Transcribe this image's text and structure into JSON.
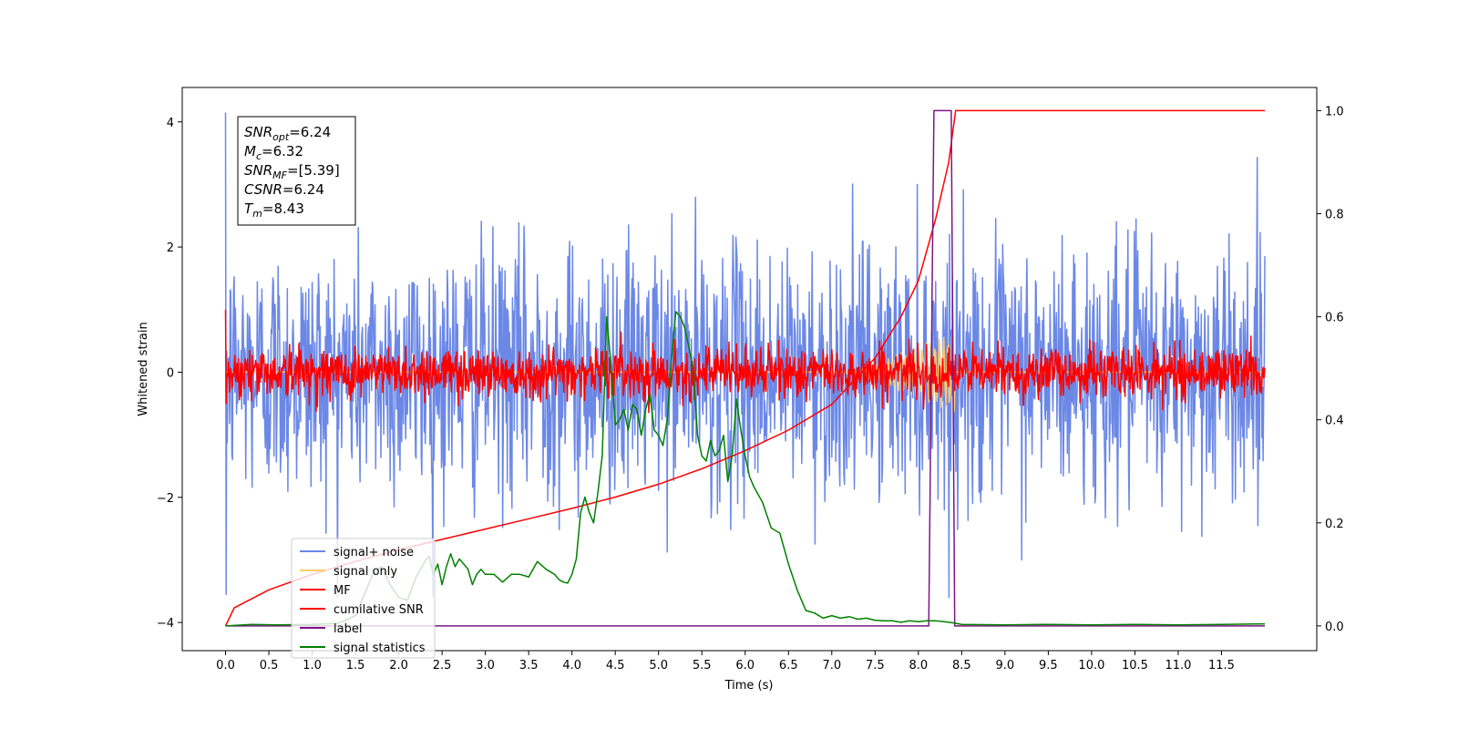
{
  "chart_data": {
    "type": "line",
    "xlabel": "Time (s)",
    "ylabel_left": "Whitened strain",
    "ylabel_right": "",
    "xlim": [
      -0.5,
      12.6
    ],
    "ylim_left": [
      -4.45,
      4.55
    ],
    "ylim_right": [
      -0.048,
      1.045
    ],
    "grid": false,
    "legend_placement": "lower-left",
    "x_ticks": [
      "0.0",
      "0.5",
      "1.0",
      "1.5",
      "2.0",
      "2.5",
      "3.0",
      "3.5",
      "4.0",
      "4.5",
      "5.0",
      "5.5",
      "6.0",
      "6.5",
      "7.0",
      "7.5",
      "8.0",
      "8.5",
      "9.0",
      "9.5",
      "10.0",
      "10.5",
      "11.0",
      "11.5"
    ],
    "y_ticks_left": [
      "−4",
      "−2",
      "0",
      "2",
      "4"
    ],
    "y_ticks_right": [
      "0.0",
      "0.2",
      "0.4",
      "0.6",
      "0.8",
      "1.0"
    ],
    "info_box": [
      {
        "label": "SNR",
        "sub": "opt",
        "value": "=6.24"
      },
      {
        "label": "M",
        "sub": "c",
        "value": "=6.32"
      },
      {
        "label": "SNR",
        "sub": "MF",
        "value": "=[5.39]"
      },
      {
        "label": "CSNR",
        "sub": "",
        "value": "=6.24"
      },
      {
        "label": "T",
        "sub": "m",
        "value": "=8.43"
      }
    ],
    "series": [
      {
        "name": "signal+ noise",
        "axis": "left",
        "color": "#6b88e6",
        "kind": "noise",
        "x_range": [
          0.0,
          12.0
        ],
        "std": 1.0,
        "extremes": [
          4.15,
          -3.55
        ]
      },
      {
        "name": "signal only",
        "axis": "left",
        "color": "#ffcc66",
        "kind": "chirp",
        "x_range": [
          0.0,
          12.0
        ],
        "peak_time": 8.43,
        "amplitude": 0.65
      },
      {
        "name": "MF",
        "axis": "left",
        "color": "#ff0000",
        "kind": "noise",
        "x_range": [
          0.0,
          12.0
        ],
        "std": 0.2,
        "extremes": [
          1.0,
          -0.5
        ]
      },
      {
        "name": "cumilative SNR",
        "axis": "right",
        "color": "#ff0000",
        "x": [
          0.0,
          0.1,
          0.5,
          1.0,
          1.5,
          2.0,
          2.5,
          3.0,
          3.5,
          4.0,
          4.5,
          5.0,
          5.5,
          6.0,
          6.5,
          7.0,
          7.5,
          7.8,
          8.0,
          8.2,
          8.35,
          8.43,
          12.0
        ],
        "y": [
          0.0,
          0.035,
          0.07,
          0.1,
          0.125,
          0.148,
          0.168,
          0.188,
          0.208,
          0.228,
          0.25,
          0.275,
          0.305,
          0.34,
          0.38,
          0.43,
          0.52,
          0.6,
          0.67,
          0.79,
          0.9,
          1.0,
          1.0
        ]
      },
      {
        "name": "label",
        "axis": "right",
        "color": "#7b1683",
        "x": [
          0.0,
          8.12,
          8.18,
          8.38,
          8.42,
          12.0
        ],
        "y": [
          0.0,
          0.0,
          1.0,
          1.0,
          0.0,
          0.0
        ]
      },
      {
        "name": "signal statistics",
        "axis": "right",
        "color": "#008000",
        "x": [
          0.0,
          0.3,
          0.6,
          1.0,
          1.3,
          1.5,
          1.6,
          1.7,
          1.8,
          1.9,
          2.0,
          2.1,
          2.2,
          2.3,
          2.35,
          2.4,
          2.45,
          2.5,
          2.55,
          2.6,
          2.65,
          2.7,
          2.75,
          2.8,
          2.85,
          2.9,
          2.95,
          3.0,
          3.1,
          3.2,
          3.3,
          3.4,
          3.5,
          3.6,
          3.7,
          3.8,
          3.85,
          3.9,
          3.95,
          4.0,
          4.05,
          4.1,
          4.15,
          4.2,
          4.25,
          4.3,
          4.35,
          4.4,
          4.45,
          4.5,
          4.55,
          4.6,
          4.65,
          4.7,
          4.75,
          4.8,
          4.85,
          4.9,
          4.95,
          5.0,
          5.05,
          5.1,
          5.15,
          5.2,
          5.25,
          5.3,
          5.35,
          5.4,
          5.45,
          5.5,
          5.55,
          5.6,
          5.65,
          5.7,
          5.75,
          5.8,
          5.85,
          5.9,
          5.95,
          6.0,
          6.05,
          6.1,
          6.2,
          6.3,
          6.4,
          6.5,
          6.6,
          6.7,
          6.8,
          6.9,
          7.0,
          7.1,
          7.2,
          7.3,
          7.4,
          7.5,
          7.6,
          7.7,
          7.8,
          7.9,
          8.0,
          8.1,
          8.2,
          8.3,
          8.4,
          8.5,
          9.0,
          9.5,
          10.0,
          10.5,
          11.0,
          11.5,
          12.0
        ],
        "y": [
          0.0,
          0.003,
          0.002,
          0.003,
          0.005,
          0.02,
          0.06,
          0.1,
          0.115,
          0.08,
          0.055,
          0.05,
          0.095,
          0.125,
          0.135,
          0.1,
          0.12,
          0.08,
          0.115,
          0.14,
          0.115,
          0.13,
          0.12,
          0.11,
          0.08,
          0.1,
          0.11,
          0.1,
          0.1,
          0.085,
          0.1,
          0.1,
          0.095,
          0.125,
          0.11,
          0.1,
          0.09,
          0.085,
          0.083,
          0.1,
          0.13,
          0.22,
          0.25,
          0.22,
          0.2,
          0.26,
          0.33,
          0.6,
          0.51,
          0.39,
          0.4,
          0.42,
          0.38,
          0.43,
          0.42,
          0.37,
          0.42,
          0.45,
          0.38,
          0.37,
          0.35,
          0.4,
          0.52,
          0.61,
          0.6,
          0.58,
          0.54,
          0.5,
          0.37,
          0.33,
          0.32,
          0.36,
          0.33,
          0.34,
          0.37,
          0.28,
          0.33,
          0.44,
          0.38,
          0.33,
          0.29,
          0.27,
          0.24,
          0.19,
          0.18,
          0.12,
          0.07,
          0.03,
          0.025,
          0.015,
          0.02,
          0.015,
          0.018,
          0.013,
          0.015,
          0.011,
          0.01,
          0.01,
          0.007,
          0.01,
          0.008,
          0.01,
          0.01,
          0.008,
          0.006,
          0.003,
          0.002,
          0.003,
          0.002,
          0.003,
          0.002,
          0.003,
          0.004
        ]
      }
    ]
  }
}
